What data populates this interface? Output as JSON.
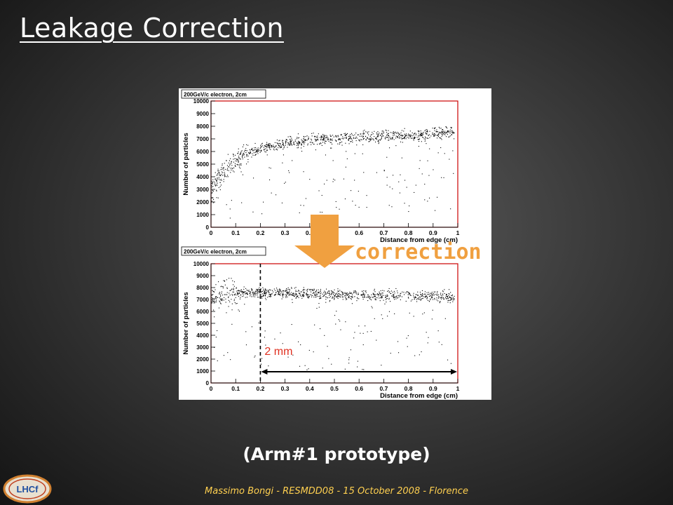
{
  "slide": {
    "title": "Leakage Correction",
    "caption": "(Arm#1 prototype)",
    "footer": "Massimo Bongi - RESMDD08 - 15 October 2008 - Florence",
    "logo_text": "LHCf",
    "correction_label": "correction",
    "annotation_2mm": "2 mm"
  },
  "colors": {
    "accent_orange": "#f0a040",
    "annotation_red": "#e03020",
    "frame_red": "#cc0000",
    "footer_yellow": "#ffd050"
  },
  "chart_data": [
    {
      "type": "scatter",
      "title": "200GeV/c electron, 2cm",
      "xlabel": "Distance from edge (cm)",
      "ylabel": "Number of particles",
      "xlim": [
        0,
        1
      ],
      "ylim": [
        0,
        10000
      ],
      "xticks": [
        "0",
        "0.1",
        "0.2",
        "0.3",
        "0.4",
        "0.5",
        "0.6",
        "0.7",
        "0.8",
        "0.9",
        "1"
      ],
      "yticks": [
        "0",
        "1000",
        "2000",
        "3000",
        "4000",
        "5000",
        "6000",
        "7000",
        "8000",
        "9000",
        "10000"
      ],
      "trend": {
        "x": [
          0.0,
          0.02,
          0.05,
          0.1,
          0.15,
          0.2,
          0.3,
          0.4,
          0.5,
          0.6,
          0.7,
          0.8,
          0.9,
          0.97
        ],
        "y": [
          3000,
          3700,
          4500,
          5400,
          5900,
          6250,
          6650,
          6900,
          7050,
          7150,
          7250,
          7350,
          7450,
          7500
        ]
      }
    },
    {
      "type": "scatter",
      "title": "200GeV/c electron, 2cm",
      "xlabel": "Distance from edge (cm)",
      "ylabel": "Number of particles",
      "xlim": [
        0,
        1
      ],
      "ylim": [
        0,
        10000
      ],
      "xticks": [
        "0",
        "0.1",
        "0.2",
        "0.3",
        "0.4",
        "0.5",
        "0.6",
        "0.7",
        "0.8",
        "0.9",
        "1"
      ],
      "yticks": [
        "0",
        "1000",
        "2000",
        "3000",
        "4000",
        "5000",
        "6000",
        "7000",
        "8000",
        "9000",
        "10000"
      ],
      "trend": {
        "x": [
          0.0,
          0.05,
          0.1,
          0.2,
          0.3,
          0.4,
          0.5,
          0.6,
          0.7,
          0.8,
          0.9,
          0.97
        ],
        "y": [
          7300,
          7500,
          7600,
          7650,
          7550,
          7500,
          7450,
          7400,
          7400,
          7350,
          7300,
          7250
        ]
      },
      "annotations": {
        "dashed_line_x": 0.2,
        "arrow_range": [
          0.2,
          1.0
        ],
        "label": "2 mm"
      }
    }
  ]
}
